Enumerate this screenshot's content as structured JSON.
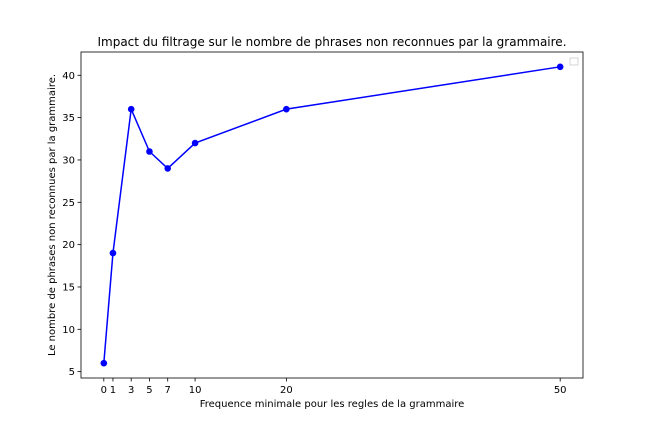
{
  "chart_data": {
    "type": "line",
    "title": "Impact du filtrage sur le nombre de phrases non reconnues par la grammaire.",
    "xlabel": "Frequence minimale pour les regles de la grammaire",
    "ylabel": "Le nombre de phrases non reconnues par la grammaire.",
    "x": [
      0,
      1,
      3,
      5,
      7,
      10,
      20,
      50
    ],
    "series": [
      {
        "values": [
          6,
          19,
          36,
          31,
          29,
          32,
          36,
          41
        ]
      }
    ],
    "xticks": [
      0,
      1,
      3,
      5,
      7,
      10,
      20,
      50
    ],
    "yticks": [
      5,
      10,
      15,
      20,
      25,
      30,
      35,
      40
    ],
    "xlim": [
      -2.5,
      52.5
    ],
    "ylim": [
      4.25,
      42.75
    ],
    "line_color": "#0000ff",
    "marker": "circle",
    "grid": false,
    "legend": "top-right (empty)"
  }
}
